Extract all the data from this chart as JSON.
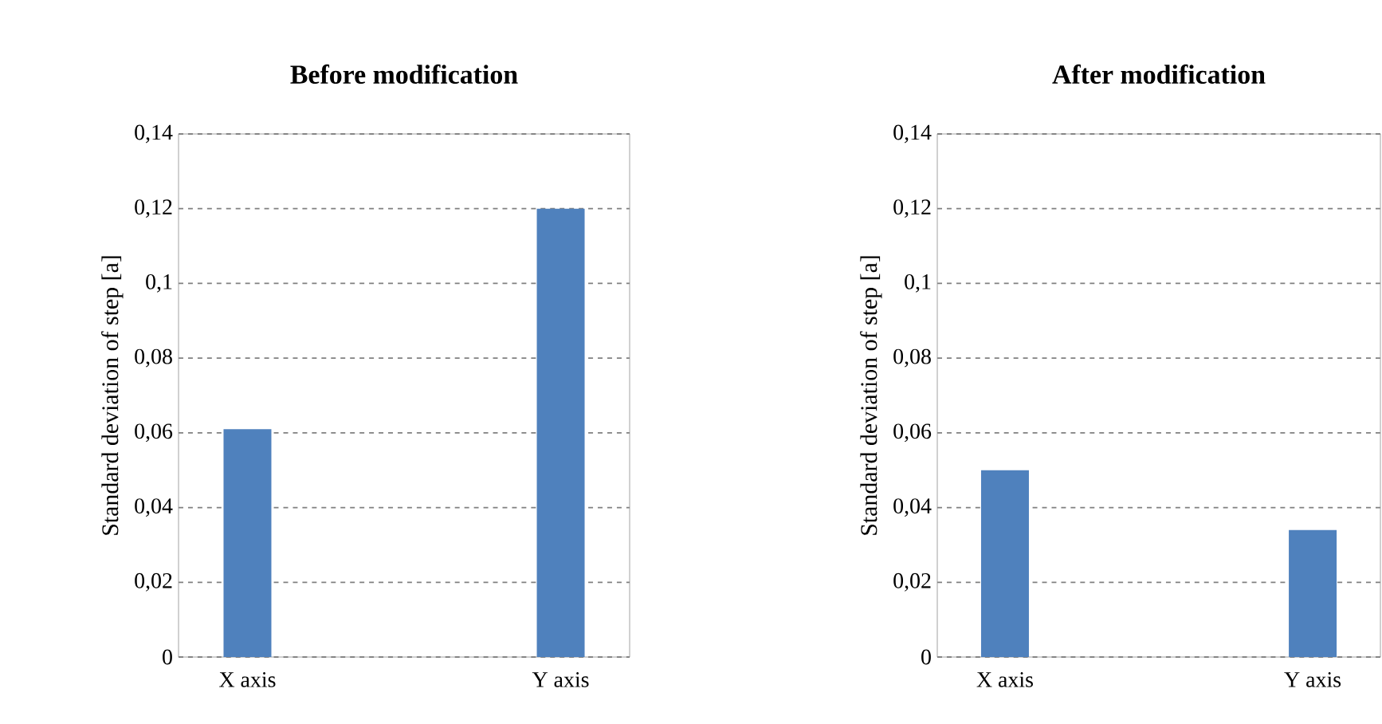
{
  "chart_data": [
    {
      "type": "bar",
      "title": "Before modification",
      "ylabel": "Standard deviation of step [a]",
      "categories": [
        "X axis",
        "Y axis"
      ],
      "values": [
        0.061,
        0.12
      ],
      "color": "#4f81bd",
      "ylim": [
        0,
        0.14
      ],
      "yticks": [
        0,
        {
          "value": 0.02,
          "label": "0,02"
        },
        {
          "value": 0.04,
          "label": "0,04"
        },
        {
          "value": 0.06,
          "label": "0,06"
        },
        {
          "value": 0.08,
          "label": "0,08"
        },
        {
          "value": 0.1,
          "label": "0,1"
        },
        {
          "value": 0.12,
          "label": "0,12"
        },
        {
          "value": 0.14,
          "label": "0,14"
        }
      ],
      "grid": "y",
      "line_style": "dashed"
    },
    {
      "type": "bar",
      "title": "After modification",
      "ylabel": "Standard deviation of step [a]",
      "categories": [
        "X axis",
        "Y axis"
      ],
      "values": [
        0.05,
        0.034
      ],
      "color": "#4f81bd",
      "ylim": [
        0,
        0.14
      ],
      "yticks": [
        0,
        {
          "value": 0.02,
          "label": "0,02"
        },
        {
          "value": 0.04,
          "label": "0,04"
        },
        {
          "value": 0.06,
          "label": "0,06"
        },
        {
          "value": 0.08,
          "label": "0,08"
        },
        {
          "value": 0.1,
          "label": "0,1"
        },
        {
          "value": 0.12,
          "label": "0,12"
        },
        {
          "value": 0.14,
          "label": "0,14"
        }
      ],
      "grid": "y",
      "line_style": "dashed"
    }
  ]
}
